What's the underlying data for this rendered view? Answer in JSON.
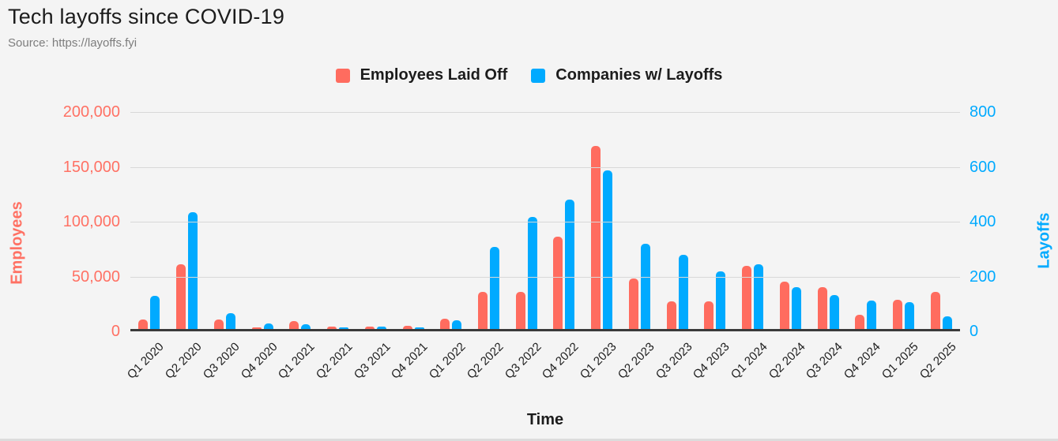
{
  "header": {
    "title": "Tech layoffs since COVID-19",
    "source": "Source: https://layoffs.fyi"
  },
  "colors": {
    "employees": "#FF6C5F",
    "companies": "#00AAFF",
    "background": "#F4F4F4",
    "gridline": "#D8D8D8",
    "axis_line": "#3A3A3A"
  },
  "chart_data": {
    "type": "bar",
    "title": "Tech layoffs since COVID-19",
    "xlabel": "Time",
    "categories": [
      "Q1 2020",
      "Q2 2020",
      "Q3 2020",
      "Q4 2020",
      "Q1 2021",
      "Q2 2021",
      "Q3 2021",
      "Q4 2021",
      "Q1 2022",
      "Q2 2022",
      "Q3 2022",
      "Q4 2022",
      "Q1 2023",
      "Q2 2023",
      "Q3 2023",
      "Q4 2023",
      "Q1 2024",
      "Q2 2024",
      "Q3 2024",
      "Q4 2024",
      "Q1 2025",
      "Q2 2025"
    ],
    "series": [
      {
        "name": "Employees Laid Off",
        "axis": "left",
        "color": "#FF6C5F",
        "values": [
          9000,
          59000,
          9000,
          1500,
          7500,
          2000,
          2200,
          3000,
          9200,
          34000,
          34000,
          84000,
          167000,
          46000,
          25000,
          25000,
          57500,
          43500,
          38000,
          12700,
          26500,
          33700
        ]
      },
      {
        "name": "Companies w/ Layoffs",
        "axis": "right",
        "color": "#00AAFF",
        "values": [
          120,
          425,
          58,
          20,
          18,
          4,
          10,
          4,
          33,
          298,
          410,
          473,
          580,
          310,
          270,
          210,
          236,
          152,
          124,
          104,
          98,
          45
        ]
      }
    ],
    "y_left": {
      "label": "Employees",
      "min": 0,
      "max": 200000,
      "ticks": [
        "0",
        "50,000",
        "100,000",
        "150,000",
        "200,000"
      ]
    },
    "y_right": {
      "label": "Layoffs",
      "min": 0,
      "max": 800,
      "ticks": [
        "0",
        "200",
        "400",
        "600",
        "800"
      ]
    },
    "grid": true,
    "legend_position": "top-center"
  }
}
